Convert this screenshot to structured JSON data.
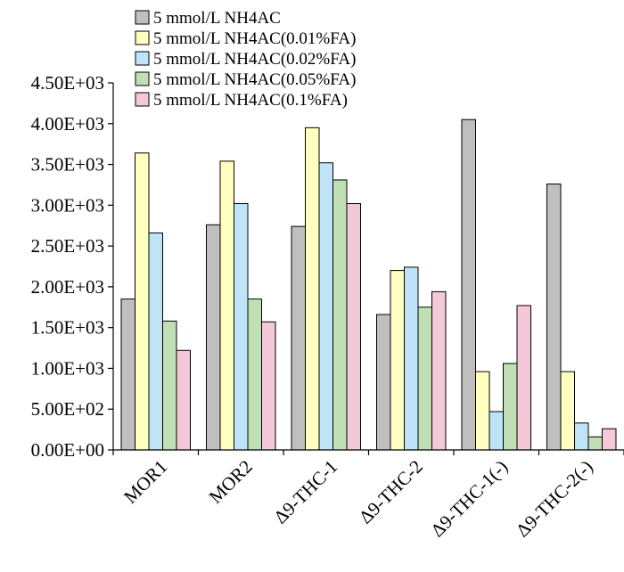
{
  "chart_data": {
    "type": "bar",
    "title": "",
    "xlabel": "",
    "ylabel": "",
    "ylim": [
      0,
      4500
    ],
    "yticks": [
      {
        "value": 0,
        "label": "0.00E+00"
      },
      {
        "value": 500,
        "label": "5.00E+02"
      },
      {
        "value": 1000,
        "label": "1.00E+03"
      },
      {
        "value": 1500,
        "label": "1.50E+03"
      },
      {
        "value": 2000,
        "label": "2.00E+03"
      },
      {
        "value": 2500,
        "label": "2.50E+03"
      },
      {
        "value": 3000,
        "label": "3.00E+03"
      },
      {
        "value": 3500,
        "label": "3.50E+03"
      },
      {
        "value": 4000,
        "label": "4.00E+03"
      },
      {
        "value": 4500,
        "label": "4.50E+03"
      }
    ],
    "grid": false,
    "legend_position": "top",
    "categories": [
      "MOR1",
      "MOR2",
      "Δ9-THC-1",
      "Δ9-THC-2",
      "Δ9-THC-1(-)",
      "Δ9-THC-2(-)"
    ],
    "series": [
      {
        "name": "5 mmol/L NH4AC",
        "color": "#bfbfbf",
        "values": [
          1850,
          2760,
          2740,
          1660,
          4050,
          3260
        ]
      },
      {
        "name": "5 mmol/L NH4AC(0.01%FA)",
        "color": "#ffffc0",
        "values": [
          3640,
          3540,
          3950,
          2200,
          960,
          960
        ]
      },
      {
        "name": "5 mmol/L NH4AC(0.02%FA)",
        "color": "#bfe4f8",
        "values": [
          2660,
          3020,
          3520,
          2240,
          470,
          330
        ]
      },
      {
        "name": "5 mmol/L NH4AC(0.05%FA)",
        "color": "#c0dfb4",
        "values": [
          1580,
          1850,
          3310,
          1750,
          1060,
          160
        ]
      },
      {
        "name": "5 mmol/L NH4AC(0.1%FA)",
        "color": "#f4c8d8",
        "values": [
          1220,
          1570,
          3020,
          1940,
          1770,
          260
        ]
      }
    ]
  }
}
